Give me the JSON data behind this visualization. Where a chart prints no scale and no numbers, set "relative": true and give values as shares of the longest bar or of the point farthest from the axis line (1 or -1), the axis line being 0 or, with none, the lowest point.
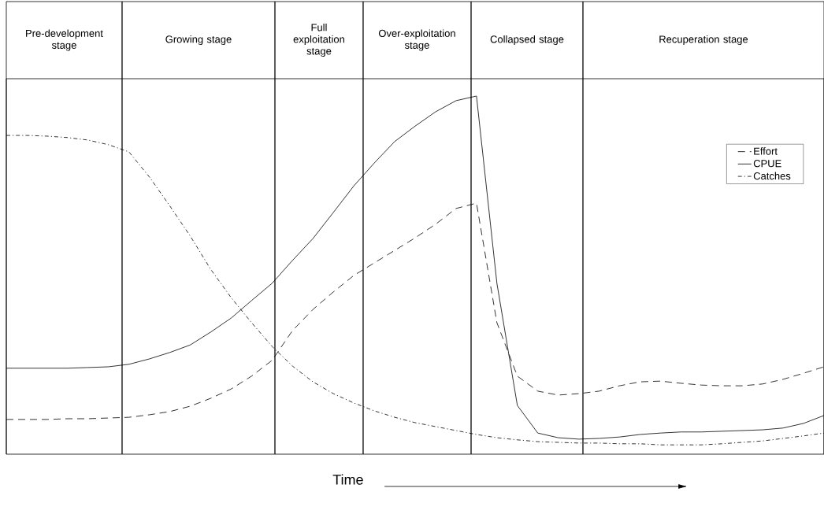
{
  "chart_data": {
    "type": "line",
    "relative": true,
    "xlabel": "Time",
    "legend": "top right",
    "categories": [
      null,
      null,
      null,
      null,
      null,
      null,
      null,
      null,
      null,
      null,
      null,
      null,
      null,
      null,
      null,
      null,
      null,
      null,
      null,
      null,
      null,
      null,
      null,
      null,
      null,
      null,
      null,
      null,
      null,
      null,
      null,
      null,
      null,
      null,
      null,
      null,
      null,
      null,
      null,
      null,
      null
    ],
    "annotations": [
      "Pre-development stage",
      "Growing stage",
      "Full exploitation stage",
      "Over-exploitation stage",
      "Collapsed stage",
      "Recuperation stage"
    ],
    "series": [
      {
        "name": "Effort",
        "color": "#000000",
        "line_style": "dashed",
        "values": [
          0.097,
          0.097,
          0.097,
          0.099,
          0.099,
          0.101,
          0.103,
          0.11,
          0.119,
          0.134,
          0.156,
          0.182,
          0.218,
          0.262,
          0.345,
          0.404,
          0.453,
          0.499,
          0.534,
          0.569,
          0.604,
          0.642,
          0.686,
          0.701,
          0.367,
          0.218,
          0.176,
          0.165,
          0.169,
          0.176,
          0.191,
          0.202,
          0.204,
          0.198,
          0.193,
          0.191,
          0.191,
          0.196,
          0.209,
          0.226,
          0.244
        ]
      },
      {
        "name": "CPUE",
        "color": "#000000",
        "line_style": "solid",
        "values": [
          0.24,
          0.24,
          0.24,
          0.24,
          0.242,
          0.244,
          0.251,
          0.266,
          0.284,
          0.305,
          0.341,
          0.38,
          0.429,
          0.477,
          0.541,
          0.602,
          0.675,
          0.749,
          0.813,
          0.873,
          0.916,
          0.956,
          0.987,
          1.0,
          0.477,
          0.136,
          0.059,
          0.046,
          0.042,
          0.044,
          0.048,
          0.055,
          0.059,
          0.062,
          0.062,
          0.064,
          0.066,
          0.068,
          0.073,
          0.086,
          0.108
        ]
      },
      {
        "name": "Catches",
        "color": "#000000",
        "line_style": "dotted",
        "values": [
          0.89,
          0.89,
          0.888,
          0.884,
          0.877,
          0.864,
          0.844,
          0.774,
          0.693,
          0.609,
          0.516,
          0.437,
          0.367,
          0.301,
          0.246,
          0.202,
          0.169,
          0.143,
          0.121,
          0.103,
          0.088,
          0.077,
          0.066,
          0.055,
          0.046,
          0.04,
          0.035,
          0.033,
          0.031,
          0.031,
          0.029,
          0.029,
          0.026,
          0.026,
          0.026,
          0.029,
          0.033,
          0.037,
          0.044,
          0.051,
          0.059
        ]
      }
    ]
  }
}
